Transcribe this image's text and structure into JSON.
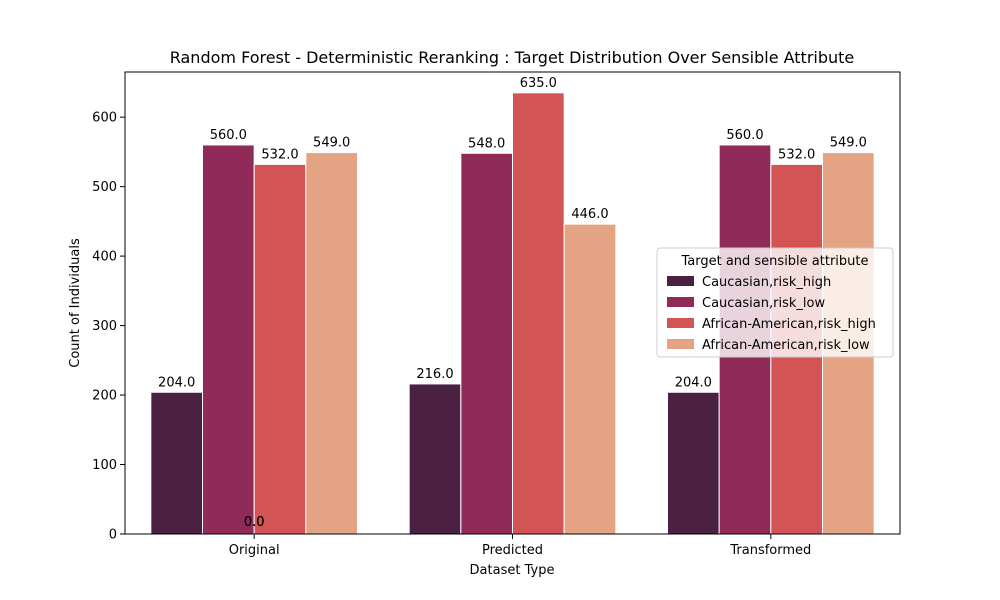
{
  "chart_data": {
    "type": "bar",
    "title": "Random Forest - Deterministic Reranking : Target Distribution Over Sensible Attribute",
    "xlabel": "Dataset Type",
    "ylabel": "Count of Individuals",
    "categories": [
      "Original",
      "Predicted",
      "Transformed"
    ],
    "ylim": [
      0,
      665
    ],
    "yticks": [
      0,
      100,
      200,
      300,
      400,
      500,
      600
    ],
    "grid": false,
    "legend": {
      "title": "Target and sensible attribute",
      "placement": "center-right"
    },
    "series": [
      {
        "name": "Caucasian,risk_high",
        "color": "#4a2142",
        "values": [
          204.0,
          216.0,
          204.0
        ]
      },
      {
        "name": "Caucasian,risk_low",
        "color": "#8f2a59",
        "values": [
          560.0,
          548.0,
          560.0
        ]
      },
      {
        "name": "African-American,risk_high",
        "color": "#d25454",
        "values": [
          532.0,
          635.0,
          532.0
        ]
      },
      {
        "name": "African-American,risk_low",
        "color": "#e4a382",
        "values": [
          549.0,
          446.0,
          549.0
        ]
      }
    ],
    "extra_labels": [
      "0.0",
      "0.0"
    ]
  }
}
